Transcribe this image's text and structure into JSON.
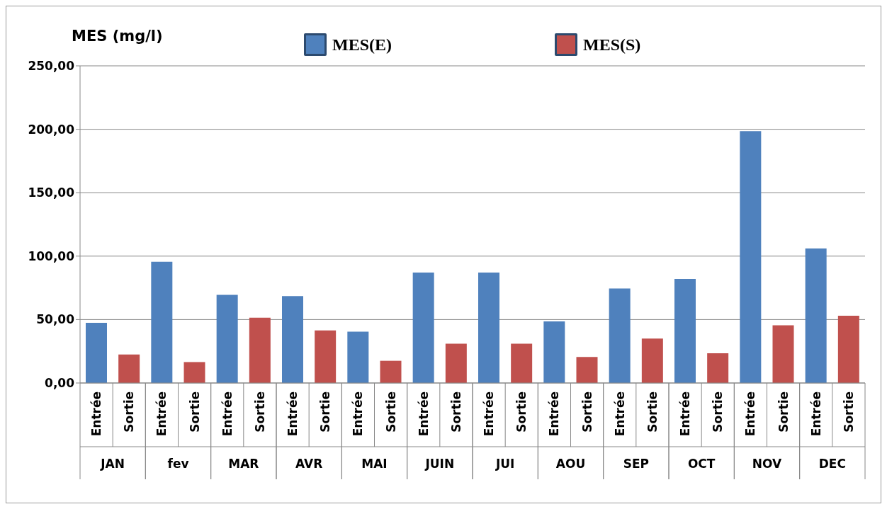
{
  "chart_data": {
    "type": "bar",
    "ylabel": "MES (mg/l)",
    "categories": [
      "JAN",
      "fev",
      "MAR",
      "AVR",
      "MAI",
      "JUIN",
      "JUI",
      "AOU",
      "SEP",
      "OCT",
      "NOV",
      "DEC"
    ],
    "series": [
      {
        "name": "MES(E)",
        "color": "#4f81bd",
        "values": [
          47.5,
          95.5,
          69.5,
          68.5,
          40.5,
          87,
          87,
          48.5,
          74.5,
          82,
          198.5,
          106
        ]
      },
      {
        "name": "MES(S)",
        "color": "#c0504d",
        "values": [
          22.5,
          16.5,
          51.5,
          41.5,
          17.5,
          31,
          31,
          20.5,
          35,
          23.5,
          45.5,
          53
        ]
      }
    ],
    "annotations": [
      "Entrée",
      "Sortie"
    ],
    "ylim": [
      0,
      250
    ],
    "yticks": [
      {
        "value": 0,
        "label": "0,00"
      },
      {
        "value": 50,
        "label": "50,00"
      },
      {
        "value": 100,
        "label": "100,00"
      },
      {
        "value": 150,
        "label": "150,00"
      },
      {
        "value": 200,
        "label": "200,00"
      },
      {
        "value": 250,
        "label": "250,00"
      }
    ],
    "grid": "y",
    "legend": "top"
  }
}
